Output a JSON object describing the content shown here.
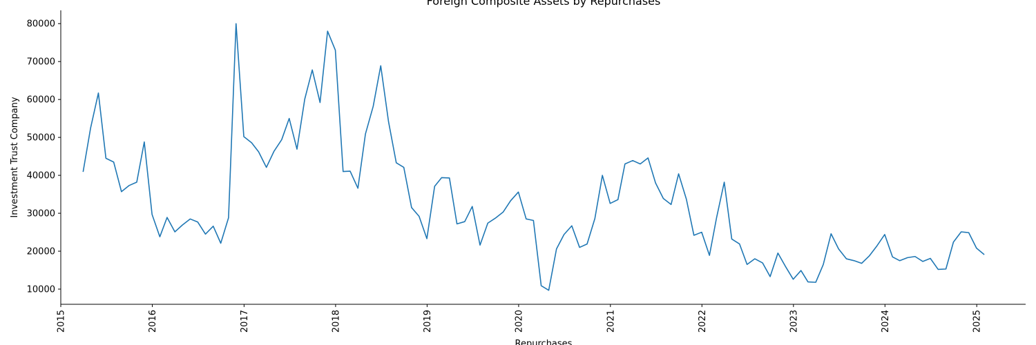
{
  "chart_data": {
    "type": "line",
    "title": "Foreign Composite Assets by Repurchases",
    "xlabel": "Repurchases",
    "ylabel": "Investment Trust Company",
    "x_ticks": [
      "2015",
      "2016",
      "2017",
      "2018",
      "2019",
      "2020",
      "2021",
      "2022",
      "2023",
      "2024",
      "2025"
    ],
    "y_ticks": [
      10000,
      20000,
      30000,
      40000,
      50000,
      60000,
      70000,
      80000
    ],
    "xlim": [
      "2015-01-01",
      "2025-07-15"
    ],
    "ylim": [
      6000,
      83500
    ],
    "grid": false,
    "series": [
      {
        "name": "",
        "color": "#1f77b4",
        "x": [
          "2015-03-31",
          "2015-04-30",
          "2015-05-31",
          "2015-06-30",
          "2015-07-31",
          "2015-08-31",
          "2015-09-30",
          "2015-10-31",
          "2015-11-30",
          "2015-12-31",
          "2016-01-31",
          "2016-02-29",
          "2016-03-31",
          "2016-04-30",
          "2016-05-31",
          "2016-06-30",
          "2016-07-31",
          "2016-08-31",
          "2016-09-30",
          "2016-10-31",
          "2016-11-30",
          "2016-12-31",
          "2017-01-31",
          "2017-02-28",
          "2017-03-31",
          "2017-04-30",
          "2017-05-31",
          "2017-06-30",
          "2017-07-31",
          "2017-08-31",
          "2017-09-30",
          "2017-10-31",
          "2017-11-30",
          "2017-12-31",
          "2018-01-31",
          "2018-02-28",
          "2018-03-31",
          "2018-04-30",
          "2018-05-31",
          "2018-06-30",
          "2018-07-31",
          "2018-08-31",
          "2018-09-30",
          "2018-10-31",
          "2018-11-30",
          "2018-12-31",
          "2019-01-31",
          "2019-02-28",
          "2019-03-31",
          "2019-04-30",
          "2019-05-31",
          "2019-06-30",
          "2019-07-31",
          "2019-08-31",
          "2019-09-30",
          "2019-10-31",
          "2019-11-30",
          "2019-12-31",
          "2020-01-31",
          "2020-02-29",
          "2020-03-31",
          "2020-04-30",
          "2020-05-31",
          "2020-06-30",
          "2020-07-31",
          "2020-08-31",
          "2020-09-30",
          "2020-10-31",
          "2020-11-30",
          "2020-12-31",
          "2021-01-31",
          "2021-02-28",
          "2021-03-31",
          "2021-04-30",
          "2021-05-31",
          "2021-06-30",
          "2021-07-31",
          "2021-08-31",
          "2021-09-30",
          "2021-10-31",
          "2021-11-30",
          "2021-12-31",
          "2022-01-31",
          "2022-02-28",
          "2022-03-31",
          "2022-04-30",
          "2022-05-31",
          "2022-06-30",
          "2022-07-31",
          "2022-08-31",
          "2022-09-30",
          "2022-10-31",
          "2022-11-30",
          "2022-12-31",
          "2023-01-31",
          "2023-02-28",
          "2023-03-31",
          "2023-04-30",
          "2023-05-31",
          "2023-06-30",
          "2023-07-31",
          "2023-08-31",
          "2023-09-30",
          "2023-10-31",
          "2023-11-30",
          "2023-12-31",
          "2024-01-31",
          "2024-02-29",
          "2024-03-31",
          "2024-04-30",
          "2024-05-31",
          "2024-06-30",
          "2024-07-31",
          "2024-08-31",
          "2024-09-30",
          "2024-10-31",
          "2024-11-30",
          "2024-12-31",
          "2025-01-31"
        ],
        "values": [
          40900,
          52500,
          61700,
          44500,
          43500,
          35700,
          37300,
          38200,
          48800,
          29700,
          23800,
          28900,
          25100,
          26900,
          28500,
          27700,
          24500,
          26600,
          22100,
          28800,
          80000,
          50200,
          48600,
          46200,
          42100,
          46300,
          49400,
          55000,
          46900,
          60100,
          67800,
          59200,
          78000,
          73000,
          41000,
          41100,
          36600,
          50900,
          58200,
          68900,
          54200,
          43300,
          42100,
          31500,
          29200,
          23300,
          37100,
          39400,
          39300,
          27200,
          27800,
          31800,
          21600,
          27400,
          28700,
          30300,
          33300,
          35600,
          28500,
          28100,
          10900,
          9700,
          20600,
          24400,
          26700,
          21000,
          21900,
          28600,
          40000,
          32600,
          33600,
          43000,
          43900,
          43000,
          44600,
          38000,
          33900,
          32300,
          40400,
          33700,
          24200,
          25000,
          18900,
          28700,
          38200,
          23200,
          21900,
          16500,
          18000,
          16900,
          13300,
          19500,
          16000,
          12600,
          14900,
          11900,
          11800,
          16500,
          24600,
          20600,
          18000,
          17500,
          16800,
          18800,
          21400,
          24400,
          18500,
          17500,
          18300,
          18600,
          17300,
          18100,
          15200,
          15300,
          22400,
          25100,
          24900,
          20800,
          19100
        ]
      }
    ]
  }
}
